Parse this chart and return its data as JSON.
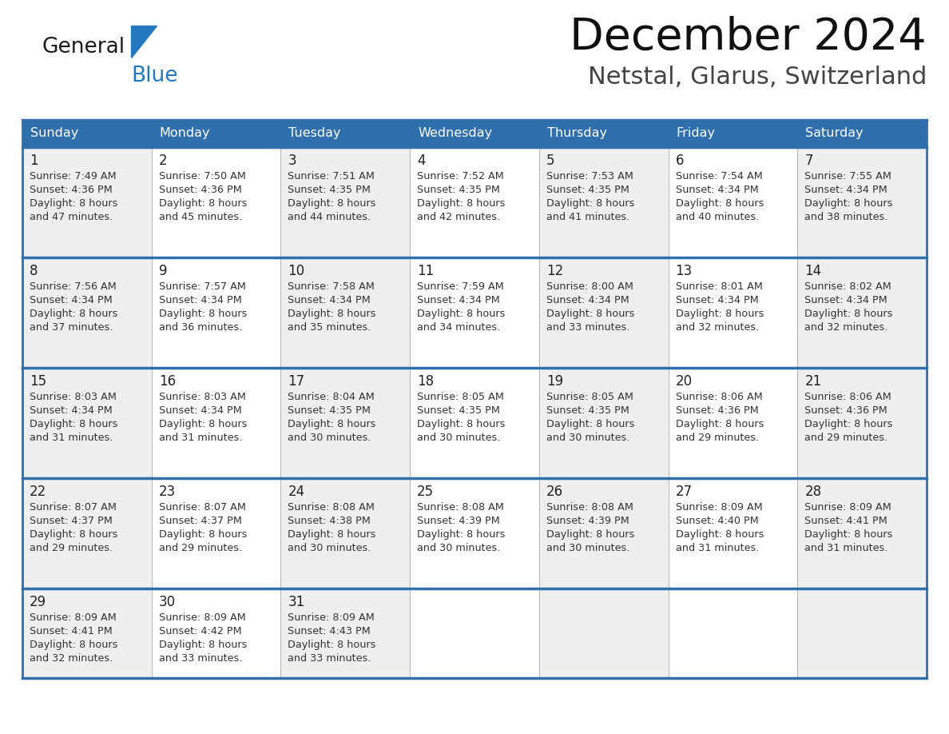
{
  "title": "December 2024",
  "subtitle": "Netstal, Glarus, Switzerland",
  "header_bg": "#2F6FAD",
  "header_text_color": "#FFFFFF",
  "cell_bg_light": "#EFEFEF",
  "cell_bg_white": "#FFFFFF",
  "border_color": "#2F6FAD",
  "sep_color": "#AAAAAA",
  "text_color_dark": "#222222",
  "text_color_info": "#333333",
  "day_names": [
    "Sunday",
    "Monday",
    "Tuesday",
    "Wednesday",
    "Thursday",
    "Friday",
    "Saturday"
  ],
  "days": [
    {
      "day": 1,
      "col": 0,
      "row": 0,
      "sunrise": "7:49 AM",
      "sunset": "4:36 PM",
      "dl_h": "8 hours",
      "dl_m": "47 minutes."
    },
    {
      "day": 2,
      "col": 1,
      "row": 0,
      "sunrise": "7:50 AM",
      "sunset": "4:36 PM",
      "dl_h": "8 hours",
      "dl_m": "45 minutes."
    },
    {
      "day": 3,
      "col": 2,
      "row": 0,
      "sunrise": "7:51 AM",
      "sunset": "4:35 PM",
      "dl_h": "8 hours",
      "dl_m": "44 minutes."
    },
    {
      "day": 4,
      "col": 3,
      "row": 0,
      "sunrise": "7:52 AM",
      "sunset": "4:35 PM",
      "dl_h": "8 hours",
      "dl_m": "42 minutes."
    },
    {
      "day": 5,
      "col": 4,
      "row": 0,
      "sunrise": "7:53 AM",
      "sunset": "4:35 PM",
      "dl_h": "8 hours",
      "dl_m": "41 minutes."
    },
    {
      "day": 6,
      "col": 5,
      "row": 0,
      "sunrise": "7:54 AM",
      "sunset": "4:34 PM",
      "dl_h": "8 hours",
      "dl_m": "40 minutes."
    },
    {
      "day": 7,
      "col": 6,
      "row": 0,
      "sunrise": "7:55 AM",
      "sunset": "4:34 PM",
      "dl_h": "8 hours",
      "dl_m": "38 minutes."
    },
    {
      "day": 8,
      "col": 0,
      "row": 1,
      "sunrise": "7:56 AM",
      "sunset": "4:34 PM",
      "dl_h": "8 hours",
      "dl_m": "37 minutes."
    },
    {
      "day": 9,
      "col": 1,
      "row": 1,
      "sunrise": "7:57 AM",
      "sunset": "4:34 PM",
      "dl_h": "8 hours",
      "dl_m": "36 minutes."
    },
    {
      "day": 10,
      "col": 2,
      "row": 1,
      "sunrise": "7:58 AM",
      "sunset": "4:34 PM",
      "dl_h": "8 hours",
      "dl_m": "35 minutes."
    },
    {
      "day": 11,
      "col": 3,
      "row": 1,
      "sunrise": "7:59 AM",
      "sunset": "4:34 PM",
      "dl_h": "8 hours",
      "dl_m": "34 minutes."
    },
    {
      "day": 12,
      "col": 4,
      "row": 1,
      "sunrise": "8:00 AM",
      "sunset": "4:34 PM",
      "dl_h": "8 hours",
      "dl_m": "33 minutes."
    },
    {
      "day": 13,
      "col": 5,
      "row": 1,
      "sunrise": "8:01 AM",
      "sunset": "4:34 PM",
      "dl_h": "8 hours",
      "dl_m": "32 minutes."
    },
    {
      "day": 14,
      "col": 6,
      "row": 1,
      "sunrise": "8:02 AM",
      "sunset": "4:34 PM",
      "dl_h": "8 hours",
      "dl_m": "32 minutes."
    },
    {
      "day": 15,
      "col": 0,
      "row": 2,
      "sunrise": "8:03 AM",
      "sunset": "4:34 PM",
      "dl_h": "8 hours",
      "dl_m": "31 minutes."
    },
    {
      "day": 16,
      "col": 1,
      "row": 2,
      "sunrise": "8:03 AM",
      "sunset": "4:34 PM",
      "dl_h": "8 hours",
      "dl_m": "31 minutes."
    },
    {
      "day": 17,
      "col": 2,
      "row": 2,
      "sunrise": "8:04 AM",
      "sunset": "4:35 PM",
      "dl_h": "8 hours",
      "dl_m": "30 minutes."
    },
    {
      "day": 18,
      "col": 3,
      "row": 2,
      "sunrise": "8:05 AM",
      "sunset": "4:35 PM",
      "dl_h": "8 hours",
      "dl_m": "30 minutes."
    },
    {
      "day": 19,
      "col": 4,
      "row": 2,
      "sunrise": "8:05 AM",
      "sunset": "4:35 PM",
      "dl_h": "8 hours",
      "dl_m": "30 minutes."
    },
    {
      "day": 20,
      "col": 5,
      "row": 2,
      "sunrise": "8:06 AM",
      "sunset": "4:36 PM",
      "dl_h": "8 hours",
      "dl_m": "29 minutes."
    },
    {
      "day": 21,
      "col": 6,
      "row": 2,
      "sunrise": "8:06 AM",
      "sunset": "4:36 PM",
      "dl_h": "8 hours",
      "dl_m": "29 minutes."
    },
    {
      "day": 22,
      "col": 0,
      "row": 3,
      "sunrise": "8:07 AM",
      "sunset": "4:37 PM",
      "dl_h": "8 hours",
      "dl_m": "29 minutes."
    },
    {
      "day": 23,
      "col": 1,
      "row": 3,
      "sunrise": "8:07 AM",
      "sunset": "4:37 PM",
      "dl_h": "8 hours",
      "dl_m": "29 minutes."
    },
    {
      "day": 24,
      "col": 2,
      "row": 3,
      "sunrise": "8:08 AM",
      "sunset": "4:38 PM",
      "dl_h": "8 hours",
      "dl_m": "30 minutes."
    },
    {
      "day": 25,
      "col": 3,
      "row": 3,
      "sunrise": "8:08 AM",
      "sunset": "4:39 PM",
      "dl_h": "8 hours",
      "dl_m": "30 minutes."
    },
    {
      "day": 26,
      "col": 4,
      "row": 3,
      "sunrise": "8:08 AM",
      "sunset": "4:39 PM",
      "dl_h": "8 hours",
      "dl_m": "30 minutes."
    },
    {
      "day": 27,
      "col": 5,
      "row": 3,
      "sunrise": "8:09 AM",
      "sunset": "4:40 PM",
      "dl_h": "8 hours",
      "dl_m": "31 minutes."
    },
    {
      "day": 28,
      "col": 6,
      "row": 3,
      "sunrise": "8:09 AM",
      "sunset": "4:41 PM",
      "dl_h": "8 hours",
      "dl_m": "31 minutes."
    },
    {
      "day": 29,
      "col": 0,
      "row": 4,
      "sunrise": "8:09 AM",
      "sunset": "4:41 PM",
      "dl_h": "8 hours",
      "dl_m": "32 minutes."
    },
    {
      "day": 30,
      "col": 1,
      "row": 4,
      "sunrise": "8:09 AM",
      "sunset": "4:42 PM",
      "dl_h": "8 hours",
      "dl_m": "33 minutes."
    },
    {
      "day": 31,
      "col": 2,
      "row": 4,
      "sunrise": "8:09 AM",
      "sunset": "4:43 PM",
      "dl_h": "8 hours",
      "dl_m": "33 minutes."
    }
  ],
  "logo_text1": "General",
  "logo_text2": "Blue",
  "logo_color1": "#1A1A1A",
  "logo_color2": "#2478C0",
  "logo_triangle_color": "#2478C0",
  "fig_width": 11.88,
  "fig_height": 9.18,
  "dpi": 100
}
